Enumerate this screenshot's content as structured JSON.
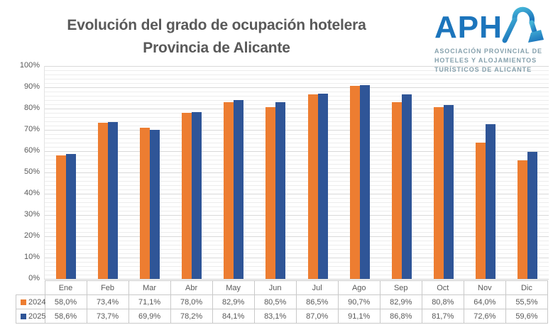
{
  "title": {
    "line1": "Evolución del grado de ocupación hotelera",
    "line2": "Provincia de Alicante"
  },
  "logo": {
    "brand": "APHA",
    "tagline_lines": [
      "ASOCIACIÓN PROVINCIAL DE",
      "HOTELES Y ALOJAMIENTOS",
      "TURÍSTICOS DE ALICANTE"
    ],
    "brand_color": "#1C75BC",
    "accent_color": "#3FB0D4",
    "tagline_color": "#85A0AC"
  },
  "chart_data": {
    "type": "bar",
    "title": "Evolución del grado de ocupación hotelera — Provincia de Alicante",
    "categories": [
      "Ene",
      "Feb",
      "Mar",
      "Abr",
      "May",
      "Jun",
      "Jul",
      "Ago",
      "Sep",
      "Oct",
      "Nov",
      "Dic"
    ],
    "series": [
      {
        "name": "2024",
        "color": "#ED7D31",
        "values": [
          58.0,
          73.4,
          71.1,
          78.0,
          82.9,
          80.5,
          86.5,
          90.7,
          82.9,
          80.8,
          64.0,
          55.5
        ],
        "labels": [
          "58,0%",
          "73,4%",
          "71,1%",
          "78,0%",
          "82,9%",
          "80,5%",
          "86,5%",
          "90,7%",
          "82,9%",
          "80,8%",
          "64,0%",
          "55,5%"
        ]
      },
      {
        "name": "2025",
        "color": "#2F5597",
        "values": [
          58.6,
          73.7,
          69.9,
          78.2,
          84.1,
          83.1,
          87.0,
          91.1,
          86.8,
          81.7,
          72.6,
          59.6
        ],
        "labels": [
          "58,6%",
          "73,7%",
          "69,9%",
          "78,2%",
          "84,1%",
          "83,1%",
          "87,0%",
          "91,1%",
          "86,8%",
          "81,7%",
          "72,6%",
          "59,6%"
        ]
      }
    ],
    "ylabel": "",
    "xlabel": "",
    "ylim": [
      0,
      100
    ],
    "y_tick_labels": [
      "0%",
      "10%",
      "20%",
      "30%",
      "40%",
      "50%",
      "60%",
      "70%",
      "80%",
      "90%",
      "100%"
    ],
    "grid": "major 10%, minor 2%, horizontal only",
    "legend_position": "table rows below chart"
  }
}
